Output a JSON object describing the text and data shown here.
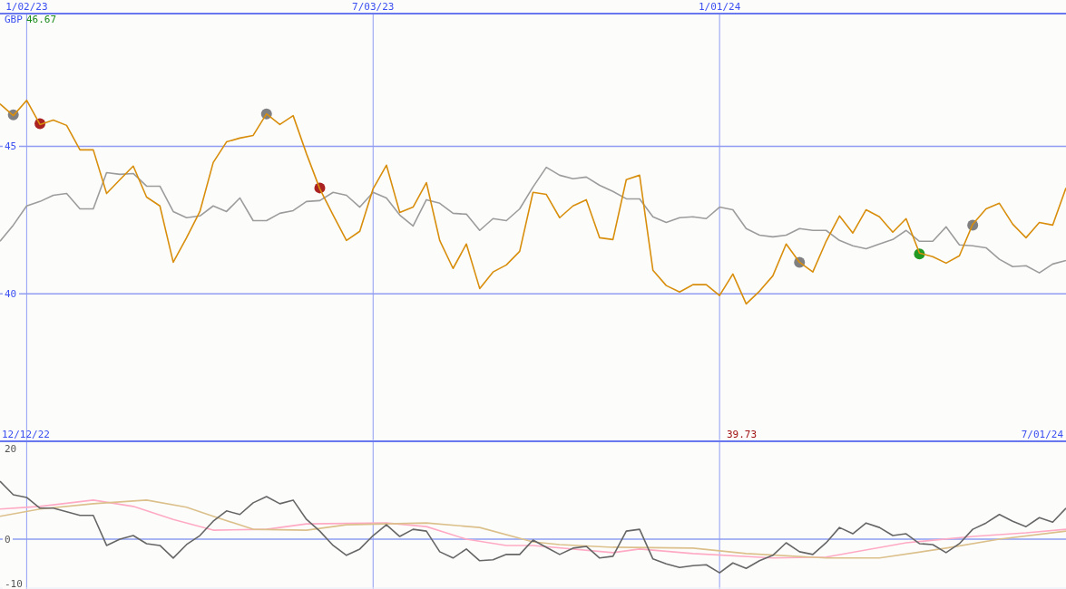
{
  "chart_data": [
    {
      "type": "line",
      "x": [
        "2022-12-19",
        "2022-12-26",
        "2023-01-02",
        "2023-01-09",
        "2023-01-16",
        "2023-01-23",
        "2023-01-30",
        "2023-02-06",
        "2023-02-13",
        "2023-02-20",
        "2023-02-27",
        "2023-03-06",
        "2023-03-13",
        "2023-03-20",
        "2023-03-27",
        "2023-04-03",
        "2023-04-10",
        "2023-04-17",
        "2023-04-24",
        "2023-05-01",
        "2023-05-08",
        "2023-05-15",
        "2023-05-22",
        "2023-05-29",
        "2023-06-05",
        "2023-06-12",
        "2023-06-19",
        "2023-06-26",
        "2023-07-03",
        "2023-07-10",
        "2023-07-17",
        "2023-07-24",
        "2023-07-31",
        "2023-08-07",
        "2023-08-14",
        "2023-08-21",
        "2023-08-28",
        "2023-09-04",
        "2023-09-11",
        "2023-09-18",
        "2023-09-25",
        "2023-10-02",
        "2023-10-09",
        "2023-10-16",
        "2023-10-23",
        "2023-10-30",
        "2023-11-06",
        "2023-11-13",
        "2023-11-20",
        "2023-11-27",
        "2023-12-04",
        "2023-12-11",
        "2023-12-18",
        "2023-12-25",
        "2024-01-01",
        "2024-01-08",
        "2024-01-15",
        "2024-01-22",
        "2024-01-29",
        "2024-02-05",
        "2024-02-12",
        "2024-02-19",
        "2024-02-26",
        "2024-03-04",
        "2024-03-11",
        "2024-03-18",
        "2024-03-25",
        "2024-04-01",
        "2024-04-08",
        "2024-04-15",
        "2024-04-22",
        "2024-04-29",
        "2024-05-06",
        "2024-05-13",
        "2024-05-20",
        "2024-05-27",
        "2024-06-03",
        "2024-06-10",
        "2024-06-17",
        "2024-06-24",
        "2024-07-01"
      ],
      "series": [
        {
          "color": "#9c9c9c",
          "values": [
            41.78,
            42.33,
            42.98,
            43.13,
            43.34,
            43.4,
            42.88,
            42.88,
            44.11,
            44.05,
            44.08,
            43.65,
            43.65,
            42.79,
            42.58,
            42.64,
            42.98,
            42.79,
            43.25,
            42.48,
            42.48,
            42.73,
            42.82,
            43.13,
            43.16,
            43.44,
            43.34,
            42.94,
            43.44,
            43.25,
            42.67,
            42.3,
            43.19,
            43.07,
            42.73,
            42.7,
            42.15,
            42.55,
            42.48,
            42.88,
            43.62,
            44.29,
            44.02,
            43.9,
            43.96,
            43.68,
            43.47,
            43.22,
            43.22,
            42.61,
            42.42,
            42.58,
            42.61,
            42.55,
            42.94,
            42.85,
            42.21,
            41.99,
            41.93,
            41.99,
            42.21,
            42.15,
            42.15,
            41.81,
            41.63,
            41.53,
            41.69,
            41.84,
            42.15,
            41.78,
            41.78,
            42.27,
            41.66,
            41.63,
            41.56,
            41.17,
            40.92,
            40.95,
            40.71,
            41.01,
            41.13
          ]
        },
        {
          "color": "#d88e0c",
          "values": [
            46.44,
            46.04,
            46.56,
            45.74,
            45.89,
            45.71,
            44.88,
            44.88,
            43.4,
            43.87,
            44.33,
            43.28,
            42.98,
            41.07,
            41.9,
            42.79,
            44.45,
            45.15,
            45.28,
            45.37,
            46.1,
            45.74,
            46.04,
            44.75,
            43.56,
            42.67,
            41.81,
            42.12,
            43.56,
            44.36,
            42.76,
            42.94,
            43.77,
            41.81,
            40.86,
            41.69,
            40.18,
            40.74,
            40.98,
            41.44,
            43.44,
            43.37,
            42.58,
            42.98,
            43.19,
            41.9,
            41.84,
            43.87,
            44.02,
            40.8,
            40.28,
            40.06,
            40.31,
            40.31,
            39.94,
            40.67,
            39.66,
            40.09,
            40.61,
            41.69,
            41.07,
            40.74,
            41.78,
            42.64,
            42.06,
            42.85,
            42.61,
            42.09,
            42.55,
            41.38,
            41.26,
            41.04,
            41.29,
            42.36,
            42.88,
            43.07,
            42.36,
            41.9,
            42.42,
            42.33,
            43.59
          ]
        },
        {
          "type": "scatter",
          "color": "#808080",
          "x": [
            "2022-12-26",
            "2023-05-08",
            "2024-02-12",
            "2024-05-13"
          ],
          "values": [
            46.07,
            46.1,
            41.07,
            42.33
          ]
        },
        {
          "type": "scatter",
          "color": "#aa2222",
          "x": [
            "2023-01-09",
            "2023-06-05"
          ],
          "values": [
            45.77,
            43.59
          ]
        },
        {
          "type": "scatter",
          "color": "#229922",
          "x": [
            "2024-04-15"
          ],
          "values": [
            41.35
          ]
        }
      ],
      "xlim": [
        "2022-12-19",
        "2024-07-01"
      ],
      "xticks": [
        {
          "value": "2023-01-02",
          "label": "1/02/23"
        },
        {
          "value": "2023-07-03",
          "label": "7/03/23"
        },
        {
          "value": "2024-01-01",
          "label": "1/01/24"
        }
      ],
      "ylim": [
        35,
        49.5
      ],
      "yticks": [
        40,
        45
      ],
      "grid": true,
      "annotations": [
        "GBP",
        "46.67",
        "39.73"
      ]
    },
    {
      "type": "line",
      "x": [
        "2022-12-19",
        "2022-12-26",
        "2023-01-02",
        "2023-01-09",
        "2023-01-16",
        "2023-01-23",
        "2023-01-30",
        "2023-02-06",
        "2023-02-13",
        "2023-02-20",
        "2023-02-27",
        "2023-03-06",
        "2023-03-13",
        "2023-03-20",
        "2023-03-27",
        "2023-04-03",
        "2023-04-10",
        "2023-04-17",
        "2023-04-24",
        "2023-05-01",
        "2023-05-08",
        "2023-05-15",
        "2023-05-22",
        "2023-05-29",
        "2023-06-05",
        "2023-06-12",
        "2023-06-19",
        "2023-06-26",
        "2023-07-03",
        "2023-07-10",
        "2023-07-17",
        "2023-07-24",
        "2023-07-31",
        "2023-08-07",
        "2023-08-14",
        "2023-08-21",
        "2023-08-28",
        "2023-09-04",
        "2023-09-11",
        "2023-09-18",
        "2023-09-25",
        "2023-10-02",
        "2023-10-09",
        "2023-10-16",
        "2023-10-23",
        "2023-10-30",
        "2023-11-06",
        "2023-11-13",
        "2023-11-20",
        "2023-11-27",
        "2023-12-04",
        "2023-12-11",
        "2023-12-18",
        "2023-12-25",
        "2024-01-01",
        "2024-01-08",
        "2024-01-15",
        "2024-01-22",
        "2024-01-29",
        "2024-02-05",
        "2024-02-12",
        "2024-02-19",
        "2024-02-26",
        "2024-03-04",
        "2024-03-11",
        "2024-03-18",
        "2024-03-25",
        "2024-04-01",
        "2024-04-08",
        "2024-04-15",
        "2024-04-22",
        "2024-04-29",
        "2024-05-06",
        "2024-05-13",
        "2024-05-20",
        "2024-05-27",
        "2024-06-03",
        "2024-06-10",
        "2024-06-17",
        "2024-06-24",
        "2024-07-01"
      ],
      "series": [
        {
          "color": "#ffaac4",
          "x": [
            "2022-12-19",
            "2023-01-09",
            "2023-02-06",
            "2023-02-27",
            "2023-03-20",
            "2023-04-10",
            "2023-05-08",
            "2023-05-29",
            "2023-07-10",
            "2023-07-31",
            "2023-08-21",
            "2023-09-11",
            "2023-09-25",
            "2023-11-06",
            "2023-11-20",
            "2023-12-18",
            "2024-01-29",
            "2024-02-26",
            "2024-04-08",
            "2024-05-13",
            "2024-06-10",
            "2024-07-01"
          ],
          "values": [
            6.7,
            7.3,
            8.7,
            7.3,
            4.4,
            2.0,
            2.2,
            3.4,
            3.6,
            2.8,
            0,
            -1.4,
            -1.4,
            -3.0,
            -2.2,
            -3.2,
            -4.2,
            -4.0,
            -0.8,
            0.6,
            1.4,
            2.2
          ]
        },
        {
          "color": "#dcc08c",
          "x": [
            "2022-12-19",
            "2023-01-09",
            "2023-02-06",
            "2023-03-06",
            "2023-03-27",
            "2023-04-10",
            "2023-05-01",
            "2023-05-29",
            "2023-06-19",
            "2023-07-10",
            "2023-07-31",
            "2023-08-28",
            "2023-09-25",
            "2023-10-09",
            "2023-11-06",
            "2023-12-18",
            "2024-01-15",
            "2024-02-26",
            "2024-03-25",
            "2024-04-29",
            "2024-05-27",
            "2024-07-01"
          ],
          "values": [
            5.1,
            6.7,
            7.9,
            8.7,
            7.1,
            5.1,
            2.2,
            2.0,
            3.2,
            3.4,
            3.6,
            2.6,
            -0.6,
            -1.2,
            -1.8,
            -2.0,
            -3.2,
            -4.2,
            -4.2,
            -2.0,
            0,
            1.8
          ]
        },
        {
          "color": "#666666",
          "values": [
            12.9,
            9.9,
            9.3,
            6.9,
            6.9,
            6.1,
            5.3,
            5.3,
            -1.4,
            0,
            0.8,
            -1.0,
            -1.4,
            -4.2,
            -1.2,
            0.8,
            4.0,
            6.3,
            5.5,
            8.1,
            9.5,
            7.9,
            8.7,
            4.4,
            1.8,
            -1.4,
            -3.6,
            -2.2,
            0.8,
            3.2,
            0.6,
            2.2,
            1.8,
            -2.8,
            -4.2,
            -2.2,
            -4.8,
            -4.6,
            -3.4,
            -3.4,
            -0.2,
            -1.8,
            -3.4,
            -2.0,
            -1.6,
            -4.2,
            -3.8,
            1.8,
            2.2,
            -4.4,
            -5.5,
            -6.3,
            -5.9,
            -5.7,
            -7.5,
            -5.3,
            -6.5,
            -4.8,
            -3.6,
            -0.8,
            -2.8,
            -3.4,
            -0.8,
            2.6,
            1.2,
            3.6,
            2.6,
            0.8,
            1.2,
            -1.0,
            -1.2,
            -3.0,
            -1.0,
            2.2,
            3.6,
            5.5,
            4.0,
            2.8,
            4.8,
            3.8,
            6.9
          ]
        }
      ],
      "xlim": [
        "2022-12-19",
        "2024-07-01"
      ],
      "xticks": [
        {
          "value": "2023-01-02",
          "label": null
        },
        {
          "value": "2023-07-03",
          "label": null
        },
        {
          "value": "2024-01-01",
          "label": null
        }
      ],
      "ylim": [
        -11.1,
        21.8
      ],
      "yticks": [
        -10,
        0,
        20
      ],
      "grid": "x",
      "tick_labels": "y",
      "ref_lines": [
        {
          "axis": "y",
          "value": 0
        }
      ],
      "annotations": [
        "12/12/22",
        "7/01/24"
      ]
    }
  ]
}
